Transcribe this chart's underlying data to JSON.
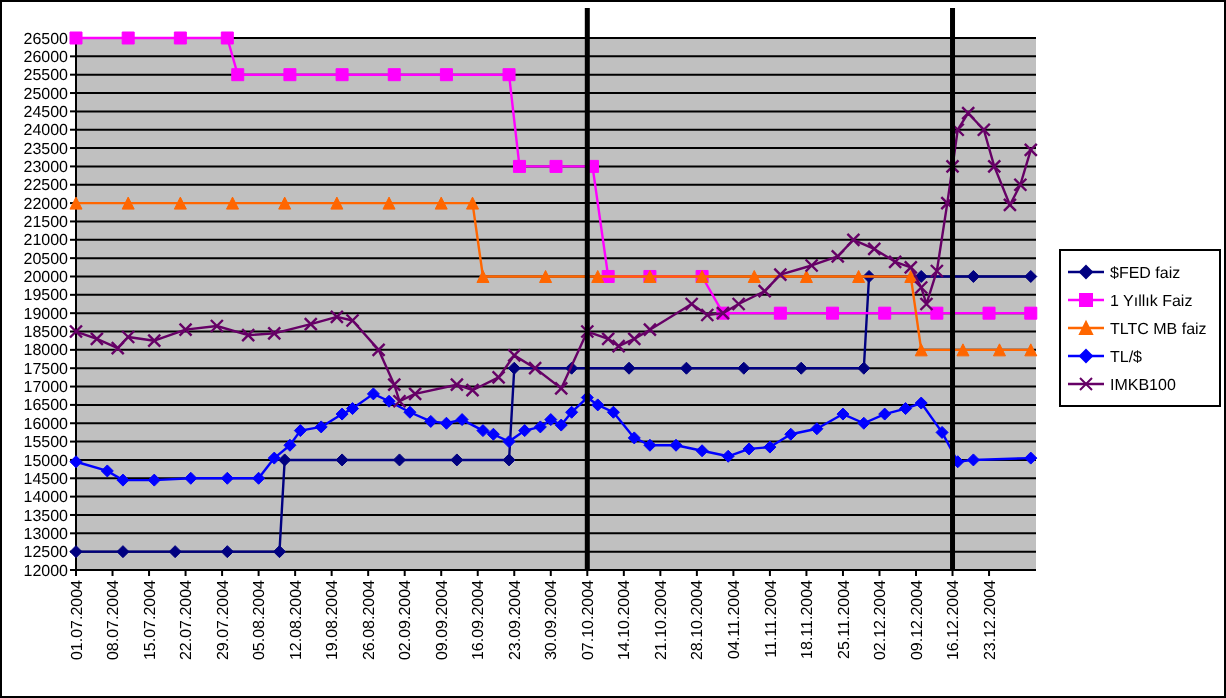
{
  "chart_data": {
    "type": "line",
    "grid": "y",
    "legend": "right",
    "xlim": [
      "2004-07-01",
      "2005-01-01"
    ],
    "ylim": [
      12000,
      26500
    ],
    "yticks": [
      12000,
      12500,
      13000,
      13500,
      14000,
      14500,
      15000,
      15500,
      16000,
      16500,
      17000,
      17500,
      18000,
      18500,
      19000,
      19500,
      20000,
      20500,
      21000,
      21500,
      22000,
      22500,
      23000,
      23500,
      24000,
      24500,
      25000,
      25500,
      26000,
      26500
    ],
    "xticks": [
      {
        "value": "2004-07-01",
        "label": "01.07.2004"
      },
      {
        "value": "2004-07-08",
        "label": "08.07.2004"
      },
      {
        "value": "2004-07-15",
        "label": "15.07.2004"
      },
      {
        "value": "2004-07-22",
        "label": "22.07.2004"
      },
      {
        "value": "2004-07-29",
        "label": "29.07.2004"
      },
      {
        "value": "2004-08-05",
        "label": "05.08.2004"
      },
      {
        "value": "2004-08-12",
        "label": "12.08.2004"
      },
      {
        "value": "2004-08-19",
        "label": "19.08.2004"
      },
      {
        "value": "2004-08-26",
        "label": "26.08.2004"
      },
      {
        "value": "2004-09-02",
        "label": "02.09.2004"
      },
      {
        "value": "2004-09-09",
        "label": "09.09.2004"
      },
      {
        "value": "2004-09-16",
        "label": "16.09.2004"
      },
      {
        "value": "2004-09-23",
        "label": "23.09.2004"
      },
      {
        "value": "2004-09-30",
        "label": "30.09.2004"
      },
      {
        "value": "2004-10-07",
        "label": "07.10.2004"
      },
      {
        "value": "2004-10-14",
        "label": "14.10.2004"
      },
      {
        "value": "2004-10-21",
        "label": "21.10.2004"
      },
      {
        "value": "2004-10-28",
        "label": "28.10.2004"
      },
      {
        "value": "2004-11-04",
        "label": "04.11.2004"
      },
      {
        "value": "2004-11-11",
        "label": "11.11.2004"
      },
      {
        "value": "2004-11-18",
        "label": "18.11.2004"
      },
      {
        "value": "2004-11-25",
        "label": "25.11.2004"
      },
      {
        "value": "2004-12-02",
        "label": "02.12.2004"
      },
      {
        "value": "2004-12-09",
        "label": "09.12.2004"
      },
      {
        "value": "2004-12-16",
        "label": "16.12.2004"
      },
      {
        "value": "2004-12-23",
        "label": "23.12.2004"
      }
    ],
    "ref_lines": [
      {
        "axis": "x",
        "value": "2004-10-07",
        "color": "#000000"
      },
      {
        "axis": "x",
        "value": "2004-12-16",
        "color": "#000000"
      }
    ],
    "series": [
      {
        "name": "$FED faiz",
        "color": "#000080",
        "marker": "diamond",
        "x": [
          "2004-07-01",
          "2004-07-10",
          "2004-07-20",
          "2004-07-30",
          "2004-08-09",
          "2004-08-10",
          "2004-08-21",
          "2004-09-01",
          "2004-09-12",
          "2004-09-22",
          "2004-09-23",
          "2004-10-04",
          "2004-10-15",
          "2004-10-26",
          "2004-11-06",
          "2004-11-17",
          "2004-11-29",
          "2004-11-30",
          "2004-12-10",
          "2004-12-20",
          "2004-12-31"
        ],
        "values": [
          12500,
          12500,
          12500,
          12500,
          12500,
          15000,
          15000,
          15000,
          15000,
          15000,
          17500,
          17500,
          17500,
          17500,
          17500,
          17500,
          17500,
          20000,
          20000,
          20000,
          20000
        ]
      },
      {
        "name": "1 Yıllık Faiz",
        "color": "#ff00ff",
        "marker": "square",
        "x": [
          "2004-07-01",
          "2004-07-11",
          "2004-07-21",
          "2004-07-30",
          "2004-08-01",
          "2004-08-11",
          "2004-08-21",
          "2004-08-31",
          "2004-09-10",
          "2004-09-22",
          "2004-09-24",
          "2004-10-01",
          "2004-10-08",
          "2004-10-11",
          "2004-10-19",
          "2004-10-29",
          "2004-11-02",
          "2004-11-13",
          "2004-11-23",
          "2004-12-03",
          "2004-12-13",
          "2004-12-23",
          "2004-12-31"
        ],
        "values": [
          26500,
          26500,
          26500,
          26500,
          25500,
          25500,
          25500,
          25500,
          25500,
          25500,
          23000,
          23000,
          23000,
          20000,
          20000,
          20000,
          19000,
          19000,
          19000,
          19000,
          19000,
          19000,
          19000
        ]
      },
      {
        "name": "TLTC MB faiz",
        "color": "#ff6600",
        "marker": "triangle",
        "x": [
          "2004-07-01",
          "2004-07-11",
          "2004-07-21",
          "2004-07-31",
          "2004-08-10",
          "2004-08-20",
          "2004-08-30",
          "2004-09-09",
          "2004-09-15",
          "2004-09-17",
          "2004-09-29",
          "2004-10-09",
          "2004-10-19",
          "2004-10-29",
          "2004-11-08",
          "2004-11-18",
          "2004-11-28",
          "2004-12-08",
          "2004-12-10",
          "2004-12-18",
          "2004-12-25",
          "2004-12-31"
        ],
        "values": [
          22000,
          22000,
          22000,
          22000,
          22000,
          22000,
          22000,
          22000,
          22000,
          20000,
          20000,
          20000,
          20000,
          20000,
          20000,
          20000,
          20000,
          20000,
          18000,
          18000,
          18000,
          18000
        ]
      },
      {
        "name": "TL/$",
        "color": "#0000ff",
        "marker": "diamond",
        "x": [
          "2004-07-01",
          "2004-07-07",
          "2004-07-10",
          "2004-07-16",
          "2004-07-23",
          "2004-07-30",
          "2004-08-05",
          "2004-08-08",
          "2004-08-11",
          "2004-08-13",
          "2004-08-17",
          "2004-08-21",
          "2004-08-23",
          "2004-08-27",
          "2004-08-30",
          "2004-09-03",
          "2004-09-07",
          "2004-09-10",
          "2004-09-13",
          "2004-09-17",
          "2004-09-19",
          "2004-09-22",
          "2004-09-25",
          "2004-09-28",
          "2004-09-30",
          "2004-10-02",
          "2004-10-04",
          "2004-10-07",
          "2004-10-09",
          "2004-10-12",
          "2004-10-16",
          "2004-10-19",
          "2004-10-24",
          "2004-10-29",
          "2004-11-03",
          "2004-11-07",
          "2004-11-11",
          "2004-11-15",
          "2004-11-20",
          "2004-11-25",
          "2004-11-29",
          "2004-12-03",
          "2004-12-07",
          "2004-12-10",
          "2004-12-14",
          "2004-12-17",
          "2004-12-20",
          "2004-12-31"
        ],
        "values": [
          14950,
          14700,
          14450,
          14450,
          14500,
          14500,
          14500,
          15050,
          15400,
          15800,
          15900,
          16250,
          16400,
          16800,
          16600,
          16300,
          16050,
          16000,
          16100,
          15800,
          15700,
          15500,
          15800,
          15900,
          16100,
          15950,
          16300,
          16700,
          16500,
          16300,
          15600,
          15400,
          15400,
          15250,
          15100,
          15300,
          15350,
          15700,
          15850,
          16250,
          16000,
          16250,
          16400,
          16550,
          15750,
          14950,
          15000,
          15050
        ]
      },
      {
        "name": "IMKB100",
        "color": "#660066",
        "marker": "cross",
        "x": [
          "2004-07-01",
          "2004-07-05",
          "2004-07-09",
          "2004-07-11",
          "2004-07-16",
          "2004-07-22",
          "2004-07-28",
          "2004-08-03",
          "2004-08-08",
          "2004-08-15",
          "2004-08-20",
          "2004-08-23",
          "2004-08-28",
          "2004-08-31",
          "2004-09-01",
          "2004-09-04",
          "2004-09-12",
          "2004-09-15",
          "2004-09-20",
          "2004-09-23",
          "2004-09-27",
          "2004-10-02",
          "2004-10-07",
          "2004-10-11",
          "2004-10-13",
          "2004-10-16",
          "2004-10-19",
          "2004-10-27",
          "2004-10-30",
          "2004-11-02",
          "2004-11-05",
          "2004-11-10",
          "2004-11-13",
          "2004-11-19",
          "2004-11-24",
          "2004-11-27",
          "2004-12-01",
          "2004-12-05",
          "2004-12-08",
          "2004-12-10",
          "2004-12-11",
          "2004-12-13",
          "2004-12-15",
          "2004-12-16",
          "2004-12-17",
          "2004-12-19",
          "2004-12-22",
          "2004-12-24",
          "2004-12-27",
          "2004-12-29",
          "2004-12-31"
        ],
        "values": [
          18500,
          18300,
          18050,
          18350,
          18250,
          18550,
          18650,
          18400,
          18450,
          18700,
          18900,
          18800,
          18000,
          17050,
          16600,
          16800,
          17050,
          16900,
          17250,
          17850,
          17500,
          16950,
          18500,
          18300,
          18100,
          18300,
          18550,
          19250,
          18950,
          19000,
          19250,
          19600,
          20050,
          20300,
          20550,
          21000,
          20750,
          20400,
          20250,
          19700,
          19250,
          20150,
          22000,
          23000,
          24000,
          24450,
          24000,
          23000,
          21950,
          22500,
          23450
        ]
      }
    ]
  }
}
